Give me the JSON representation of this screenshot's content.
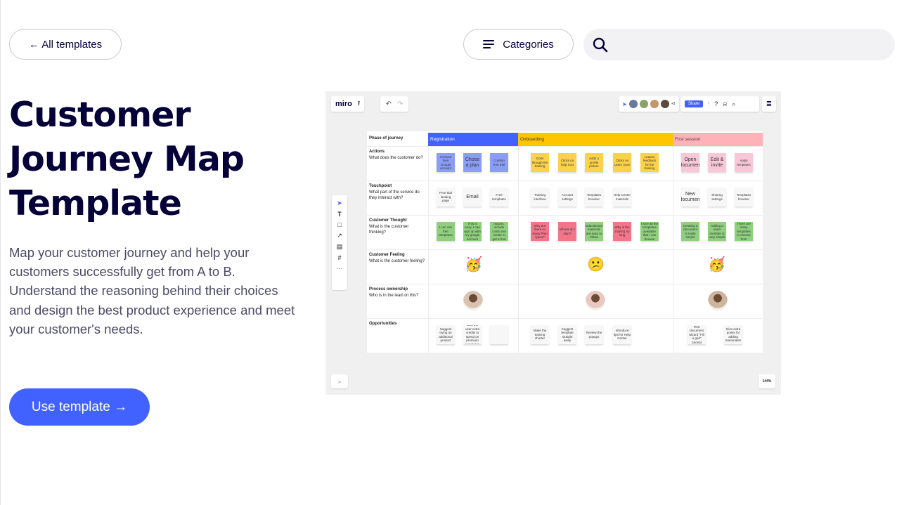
{
  "nav": {
    "back_label": "← All templates",
    "categories_label": "Categories",
    "search_placeholder": ""
  },
  "hero": {
    "title_line1": "Customer",
    "title_line2": "Journey Map",
    "title_line3": "Template",
    "description": "Map your customer journey and help your customers successfully get from A to B. Understand the reasoning behind their choices and design the best product experience and meet your customer's needs.",
    "cta_label": "Use template →"
  },
  "colors": {
    "accent": "#4262ff",
    "text_dark": "#050038",
    "registration": "#4262ff",
    "onboarding": "#ffc600",
    "first_session": "#ffb3b8",
    "sticky_blue": "#8a9ef7",
    "sticky_yellow": "#fcd24a",
    "sticky_pink": "#f8c8d8",
    "sticky_green": "#8fcf7e",
    "sticky_red": "#f2758a",
    "sticky_white": "#f7f7f7"
  },
  "preview": {
    "logo": "miro",
    "share": "Share",
    "collab_count": "+3",
    "zoom": "144%",
    "phase_header": "Phase of journey",
    "phases": [
      "Registration",
      "Onboarding",
      "First session"
    ],
    "rows": [
      {
        "title": "Actions",
        "sub": "What does the customer do?"
      },
      {
        "title": "Touchpoint",
        "sub": "What part of the service do they interact with?"
      },
      {
        "title": "Customer Thought",
        "sub": "What is the customer thinking?"
      },
      {
        "title": "Customer Feeling",
        "sub": "What is the customer feeling?"
      },
      {
        "title": "Process ownership",
        "sub": "Who is in the lead on this?"
      },
      {
        "title": "Opportunities",
        "sub": ""
      }
    ],
    "stickies": {
      "actions": [
        {
          "t": "Connect their Google account",
          "c": "blue"
        },
        {
          "t": "Chose a plan",
          "c": "blue"
        },
        {
          "t": "Confirm free trial",
          "c": "blue"
        },
        {
          "t": "Goes through the training",
          "c": "yellow"
        },
        {
          "t": "Clicks on help icon",
          "c": "yellow"
        },
        {
          "t": "Adds a profile picture",
          "c": "yellow"
        },
        {
          "t": "Clicks on Learn more",
          "c": "yellow"
        },
        {
          "t": "Leaves feedback for the training",
          "c": "yellow"
        },
        {
          "t": "Open document",
          "c": "pink"
        },
        {
          "t": "Edit & invite",
          "c": "pink"
        },
        {
          "t": "Apply templates",
          "c": "pink"
        }
      ],
      "touchpoint": [
        {
          "t": "Free trial landing page",
          "c": "white"
        },
        {
          "t": "Email",
          "c": "white"
        },
        {
          "t": "Free templates",
          "c": "white"
        },
        {
          "t": "Training interface",
          "c": "white"
        },
        {
          "t": "Account settings",
          "c": "white"
        },
        {
          "t": "Templates browser",
          "c": "white"
        },
        {
          "t": "Help Center materials",
          "c": "white"
        },
        {
          "t": "New document",
          "c": "white"
        },
        {
          "t": "Sharing settings",
          "c": "white"
        },
        {
          "t": "Templates browser",
          "c": "white"
        }
      ],
      "thought": [
        {
          "t": "I can use free templates",
          "c": "green"
        },
        {
          "t": "This is easy, I can sign up with my google account",
          "c": "green"
        },
        {
          "t": "See team reports, include costs and create to get a free trial",
          "c": "green"
        },
        {
          "t": "Why are there so many Plan types?",
          "c": "red"
        },
        {
          "t": "Where do I start?",
          "c": "red"
        },
        {
          "t": "Educational materials are easy to follow",
          "c": "green"
        },
        {
          "t": "Why is the training so long",
          "c": "red"
        },
        {
          "t": "I love all the templates available that I can browse",
          "c": "green"
        },
        {
          "t": "Creating a document is really simple",
          "c": "green"
        },
        {
          "t": "Adding a team member is very simple",
          "c": "green"
        },
        {
          "t": "There are many templates to choose from",
          "c": "green"
        }
      ],
      "feeling": [
        "🥳",
        "😕",
        "🥳"
      ],
      "opportunities": [
        {
          "t": "Suggest trying an additional product",
          "c": "white"
        },
        {
          "t": "Give the user extra credits to spend on premium templates",
          "c": "white"
        },
        {
          "t": "",
          "c": "white"
        },
        {
          "t": "Make the training shorter",
          "c": "white"
        },
        {
          "t": "Suggest template straight away",
          "c": "white"
        },
        {
          "t": "Review the popups",
          "c": "white"
        },
        {
          "t": "Introduce tips for Help Center",
          "c": "white"
        },
        {
          "t": "First document wizard \"Fill a grid\" tutorial",
          "c": "white"
        },
        {
          "t": "Give extra points for adding teammates",
          "c": "white"
        }
      ]
    }
  }
}
